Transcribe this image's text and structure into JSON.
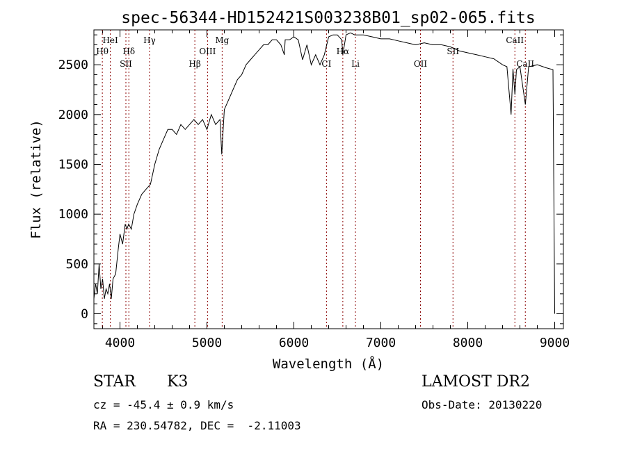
{
  "chart_data": {
    "type": "line",
    "title": "spec-56344-HD152421S003238B01_sp02-065.fits",
    "xlabel": "Wavelength (Å)",
    "ylabel": "Flux (relative)",
    "xlim": [
      3700,
      9100
    ],
    "ylim": [
      -150,
      2850
    ],
    "x_ticks": [
      4000,
      5000,
      6000,
      7000,
      8000,
      9000
    ],
    "y_ticks": [
      0,
      500,
      1000,
      1500,
      2000,
      2500
    ],
    "grid": false,
    "series": [
      {
        "x": [
          3700,
          3720,
          3740,
          3760,
          3780,
          3800,
          3820,
          3840,
          3860,
          3880,
          3900,
          3920,
          3950,
          3980,
          4000,
          4030,
          4060,
          4080,
          4100,
          4130,
          4160,
          4200,
          4250,
          4300,
          4350,
          4400,
          4450,
          4500,
          4550,
          4600,
          4650,
          4700,
          4750,
          4800,
          4850,
          4900,
          4950,
          5000,
          5050,
          5100,
          5150,
          5170,
          5200,
          5250,
          5300,
          5350,
          5400,
          5450,
          5500,
          5550,
          5600,
          5650,
          5700,
          5750,
          5800,
          5850,
          5890,
          5900,
          5950,
          6000,
          6050,
          6100,
          6150,
          6200,
          6250,
          6300,
          6350,
          6400,
          6450,
          6500,
          6550,
          6563,
          6600,
          6650,
          6700,
          6800,
          6900,
          7000,
          7100,
          7200,
          7300,
          7400,
          7500,
          7600,
          7700,
          7800,
          7900,
          8000,
          8100,
          8200,
          8300,
          8400,
          8450,
          8498,
          8520,
          8542,
          8560,
          8600,
          8662,
          8700,
          8800,
          8900,
          8980,
          9000
        ],
        "y": [
          150,
          300,
          200,
          500,
          250,
          350,
          150,
          250,
          200,
          300,
          150,
          350,
          400,
          650,
          800,
          700,
          900,
          850,
          900,
          850,
          1000,
          1100,
          1200,
          1250,
          1300,
          1500,
          1650,
          1750,
          1850,
          1850,
          1800,
          1900,
          1850,
          1900,
          1950,
          1900,
          1950,
          1850,
          2000,
          1900,
          1950,
          1600,
          2050,
          2150,
          2250,
          2350,
          2400,
          2500,
          2550,
          2600,
          2650,
          2700,
          2700,
          2750,
          2750,
          2700,
          2600,
          2750,
          2750,
          2780,
          2750,
          2550,
          2700,
          2500,
          2600,
          2500,
          2600,
          2780,
          2800,
          2800,
          2750,
          2600,
          2800,
          2820,
          2800,
          2800,
          2780,
          2760,
          2760,
          2740,
          2720,
          2700,
          2720,
          2700,
          2700,
          2680,
          2640,
          2620,
          2600,
          2580,
          2560,
          2500,
          2480,
          2000,
          2460,
          2200,
          2450,
          2480,
          2100,
          2480,
          2500,
          2470,
          2450,
          0
        ]
      }
    ],
    "lines": [
      {
        "label": "Hθ",
        "x": 3797,
        "row": 2
      },
      {
        "label": "HeI",
        "x": 3889,
        "row": 1
      },
      {
        "label": "SII",
        "x": 4068,
        "row": 3
      },
      {
        "label": "Hδ",
        "x": 4102,
        "row": 2
      },
      {
        "label": "Hγ",
        "x": 4340,
        "row": 1
      },
      {
        "label": "Hβ",
        "x": 4861,
        "row": 3
      },
      {
        "label": "OIII",
        "x": 5007,
        "row": 2
      },
      {
        "label": "Mg",
        "x": 5175,
        "row": 1
      },
      {
        "label": "CI",
        "x": 6375,
        "row": 3
      },
      {
        "label": "Hα",
        "x": 6563,
        "row": 2
      },
      {
        "label": "Li",
        "x": 6708,
        "row": 3
      },
      {
        "label": "OII",
        "x": 7456,
        "row": 3
      },
      {
        "label": "SII",
        "x": 7830,
        "row": 2
      },
      {
        "label": "CaII",
        "x": 8542,
        "row": 1
      },
      {
        "label": "CaII",
        "x": 8662,
        "row": 3
      }
    ]
  },
  "info": {
    "object": "STAR",
    "subclass": "K3",
    "survey": "LAMOST DR2",
    "cz": "cz = -45.4 ± 0.9 km/s",
    "obs_date": "Obs-Date: 20130220",
    "coords": "RA = 230.54782, DEC =  -2.11003"
  }
}
